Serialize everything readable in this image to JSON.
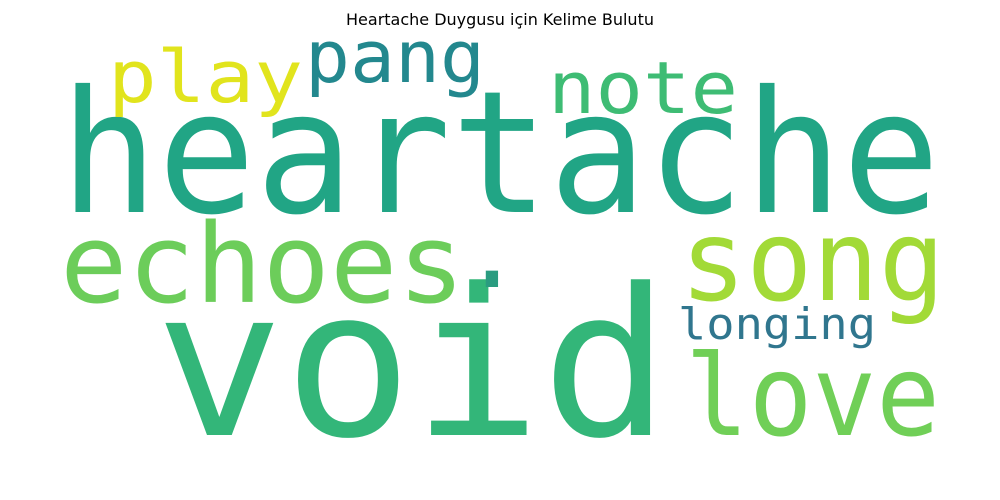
{
  "title": "Heartache Duygusu için Kelime Bulutu",
  "words": [
    {
      "id": "heartache",
      "text": "heartache",
      "color": "#21a585"
    },
    {
      "id": "void",
      "text": "void",
      "color": "#33b679"
    },
    {
      "id": "echoes",
      "text": "echoes",
      "color": "#6ccd5a"
    },
    {
      "id": "song",
      "text": "song",
      "color": "#a2da37"
    },
    {
      "id": "love",
      "text": "love",
      "color": "#70cf57"
    },
    {
      "id": "longing",
      "text": "longing",
      "color": "#30768e"
    },
    {
      "id": "note",
      "text": "note",
      "color": "#3ebc74"
    },
    {
      "id": "pang",
      "text": "pang",
      "color": "#23888e"
    },
    {
      "id": "play",
      "text": "play",
      "color": "#e1e41d"
    },
    {
      "id": "period",
      "text": ".",
      "color": "#2a9c80"
    }
  ]
}
